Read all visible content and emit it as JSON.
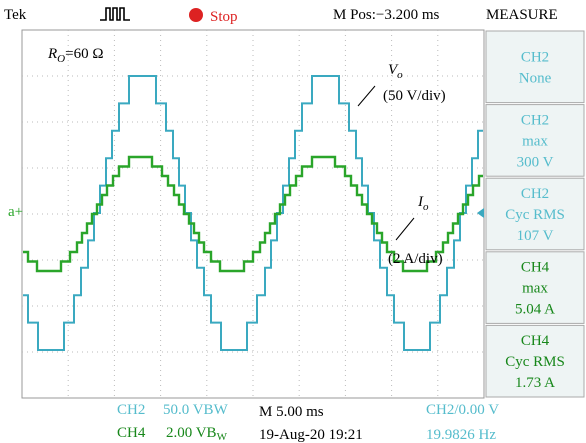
{
  "header": {
    "brand": "Tek",
    "status": "Stop",
    "position": "M Pos:−3.200 ms",
    "menu": "MEASURE"
  },
  "annotations": {
    "load": {
      "symbol": "R",
      "sub": "O",
      "text": "=60 Ω"
    },
    "voltage": {
      "symbol": "V",
      "sub": "o",
      "scale": "(50 V/div)"
    },
    "current": {
      "symbol": "I",
      "sub": "o",
      "scale": "(2 A/div)"
    },
    "marker": "a+"
  },
  "measure": [
    {
      "lines": [
        "CH2",
        "None"
      ],
      "color": "#55bccc"
    },
    {
      "lines": [
        "CH2",
        "max",
        "300 V"
      ],
      "color": "#55bccc"
    },
    {
      "lines": [
        "CH2",
        "Cyc RMS",
        "107 V"
      ],
      "color": "#55bccc"
    },
    {
      "lines": [
        "CH4",
        "max",
        "5.04 A"
      ],
      "color": "#17871a"
    },
    {
      "lines": [
        "CH4",
        "Cyc RMS",
        "1.73 A"
      ],
      "color": "#17871a"
    }
  ],
  "footer": {
    "row1": {
      "channel": "CH2",
      "scale": "50.0 VBW",
      "time": "M 5.00 ms",
      "trigger": "CH2/0.00 V"
    },
    "row2": {
      "channel": "CH4",
      "scale": "2.00 VB",
      "scale_sub": "W",
      "date": "19-Aug-20 19:21",
      "frequency": "19.9826 Hz"
    }
  }
}
